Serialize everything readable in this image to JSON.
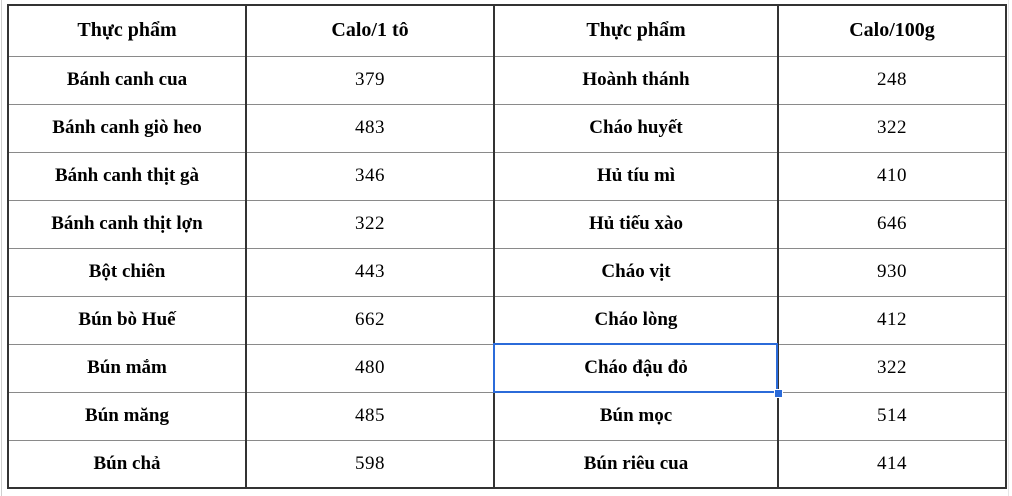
{
  "table": {
    "headers": [
      "Thực phẩm",
      "Calo/1 tô",
      "Thực phẩm",
      "Calo/100g"
    ],
    "rows": [
      [
        "Bánh canh cua",
        "379",
        "Hoành thánh",
        "248"
      ],
      [
        "Bánh canh giò heo",
        "483",
        "Cháo huyết",
        "322"
      ],
      [
        "Bánh canh thịt gà",
        "346",
        "Hủ tíu mì",
        "410"
      ],
      [
        "Bánh canh thịt lợn",
        "322",
        "Hủ tiếu xào",
        "646"
      ],
      [
        "Bột chiên",
        "443",
        "Cháo vịt",
        "930"
      ],
      [
        "Bún bò Huế",
        "662",
        "Cháo lòng",
        "412"
      ],
      [
        "Bún mắm",
        "480",
        "Cháo đậu đỏ",
        "322"
      ],
      [
        "Bún măng",
        "485",
        "Bún mọc",
        "514"
      ],
      [
        "Bún chả",
        "598",
        "Bún riêu cua",
        "414"
      ]
    ]
  },
  "selection": {
    "selected_cell_text": "Cháo đậu đỏ",
    "selected_row_index": 6,
    "selected_column_index": 2,
    "border_color": "#2b6bd9"
  },
  "colors": {
    "grid_dark": "#333333",
    "grid_light": "#8a8a8a",
    "text": "#000000",
    "background": "#ffffff",
    "selection_blue": "#2b6bd9"
  }
}
